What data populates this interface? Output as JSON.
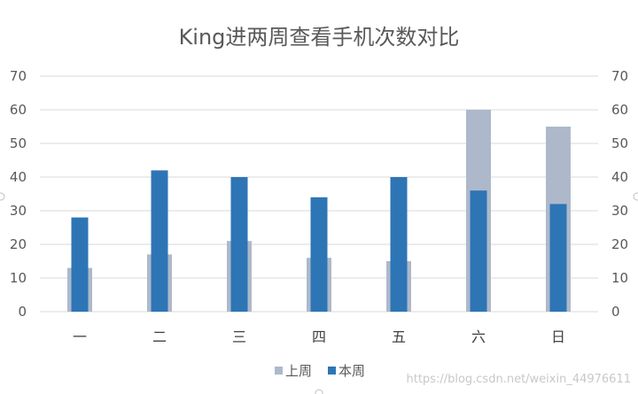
{
  "chart_data": {
    "type": "bar",
    "title": "King进两周查看手机次数对比",
    "categories": [
      "一",
      "二",
      "三",
      "四",
      "五",
      "六",
      "日"
    ],
    "series": [
      {
        "name": "上周",
        "values": [
          13,
          17,
          21,
          16,
          15,
          60,
          55
        ],
        "color": "#adb9ca"
      },
      {
        "name": "本周",
        "values": [
          28,
          42,
          40,
          34,
          40,
          36,
          32
        ],
        "color": "#2e75b6"
      }
    ],
    "ylim": [
      0,
      70
    ],
    "yticks": [
      0,
      10,
      20,
      30,
      40,
      50,
      60,
      70
    ],
    "secondary_axis": true,
    "grid": true,
    "legend": "bottom"
  },
  "watermark": "https://blog.csdn.net/weixin_44976611"
}
